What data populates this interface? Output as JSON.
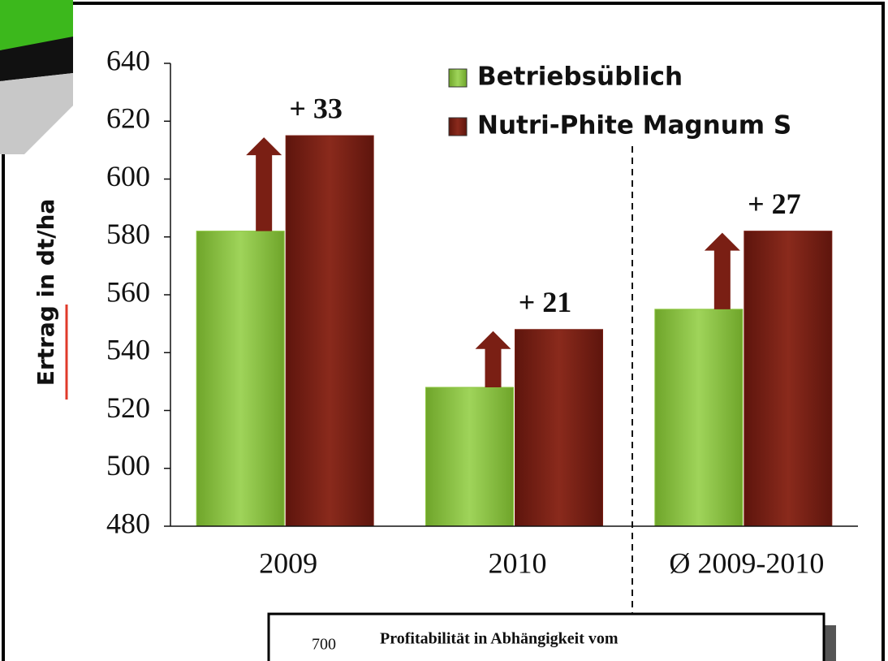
{
  "chart_data": {
    "type": "bar",
    "y_label": "Ertrag in dt/ha",
    "categories": [
      "2009",
      "2010",
      "Ø 2009-2010"
    ],
    "series": [
      {
        "name": "Betriebsüblich",
        "color": "#8cc63f",
        "values": [
          582,
          528,
          555
        ]
      },
      {
        "name": "Nutri-Phite Magnum S",
        "color": "#7a1f14",
        "values": [
          615,
          548,
          582
        ]
      }
    ],
    "annotations": [
      "+ 33",
      "+ 21",
      "+ 27"
    ],
    "ylim": [
      480,
      640
    ],
    "yticks": [
      480,
      500,
      520,
      540,
      560,
      580,
      600,
      620,
      640
    ]
  },
  "inset": {
    "ytick": "700",
    "title": "Profitabilität in Abhängigkeit vom"
  }
}
